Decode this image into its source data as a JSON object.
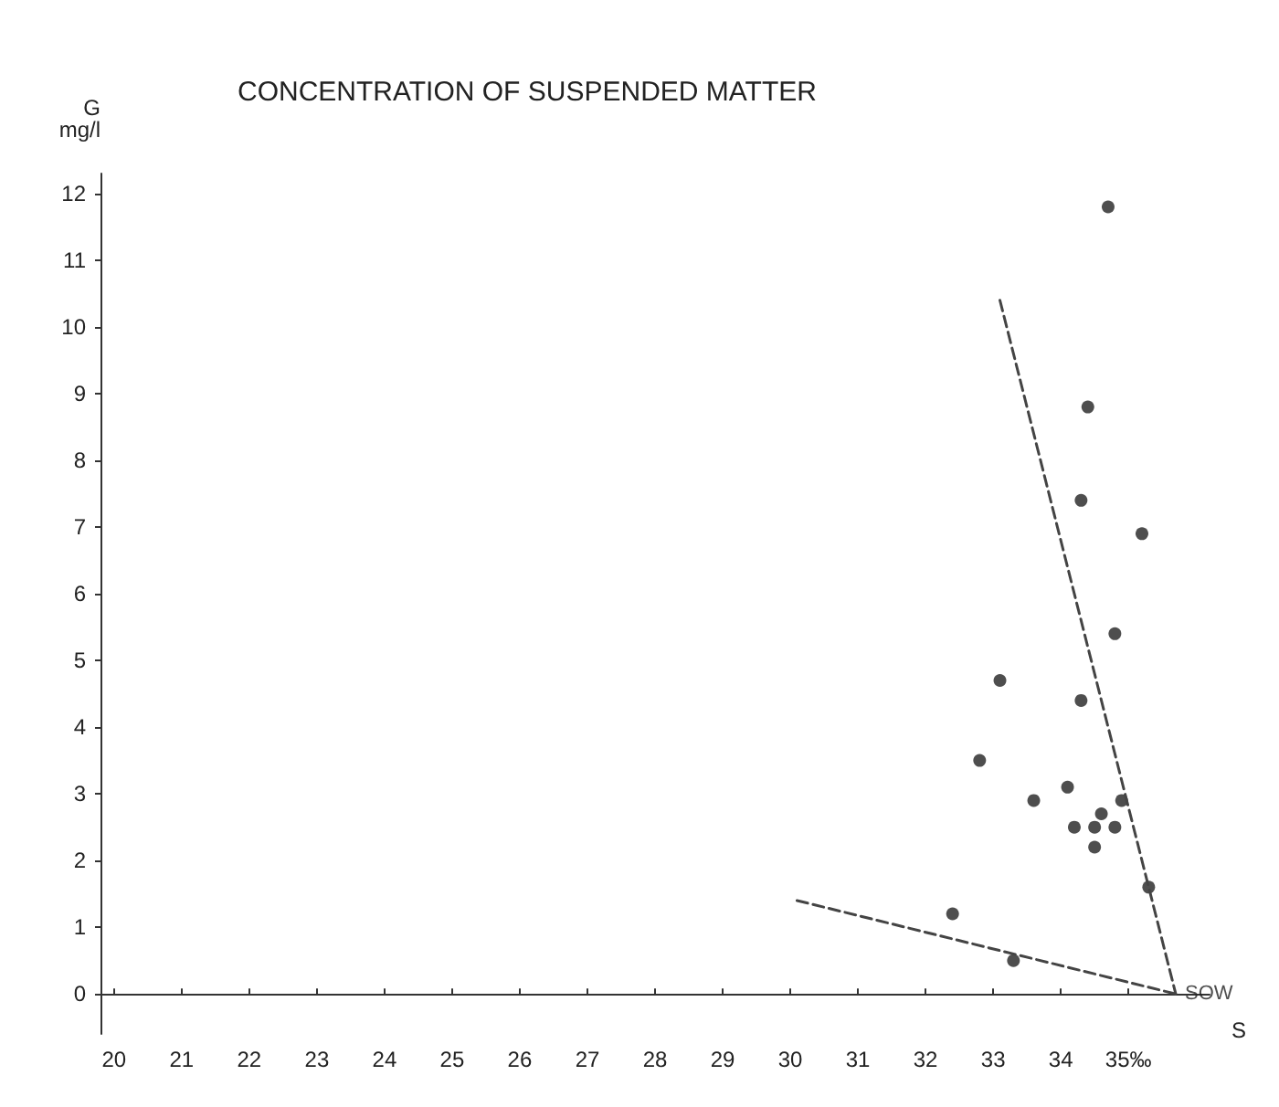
{
  "chart_data": {
    "type": "scatter",
    "title": "CONCENTRATION OF SUSPENDED MATTER",
    "xlabel": "S",
    "ylabel": "G\nmg/l",
    "xlim": [
      19.8,
      36.2
    ],
    "ylim": [
      -0.6,
      12.3
    ],
    "xticks": [
      20,
      21,
      22,
      23,
      24,
      25,
      26,
      27,
      28,
      29,
      30,
      31,
      32,
      33,
      34,
      {
        "value": 35,
        "label": "35‰"
      }
    ],
    "yticks": [
      0,
      1,
      2,
      3,
      4,
      5,
      6,
      7,
      8,
      9,
      10,
      11,
      12
    ],
    "grid": false,
    "marker": "circle",
    "annotations": [
      {
        "text": "SOW",
        "x": 35.7,
        "y": 0
      }
    ],
    "series": [
      {
        "color": "#222222",
        "x": [
          34.7,
          34.4,
          34.3,
          35.2,
          34.8,
          33.1,
          34.3,
          32.8,
          34.1,
          33.6,
          34.9,
          34.6,
          34.2,
          34.5,
          34.8,
          34.5,
          35.3,
          32.4,
          33.3
        ],
        "values": [
          11.8,
          8.8,
          7.4,
          6.9,
          5.4,
          4.7,
          4.4,
          3.5,
          3.1,
          2.9,
          2.9,
          2.7,
          2.5,
          2.5,
          2.5,
          2.2,
          1.6,
          1.2,
          0.5
        ]
      },
      {
        "type": "line",
        "color": "#444444",
        "line_style": "dashed",
        "marker": "none",
        "x": [
          33.1,
          35.7
        ],
        "values": [
          10.4,
          0
        ]
      },
      {
        "type": "line",
        "color": "#444444",
        "line_style": "dashed",
        "marker": "none",
        "x": [
          30.1,
          35.7
        ],
        "values": [
          1.4,
          0
        ]
      }
    ]
  }
}
